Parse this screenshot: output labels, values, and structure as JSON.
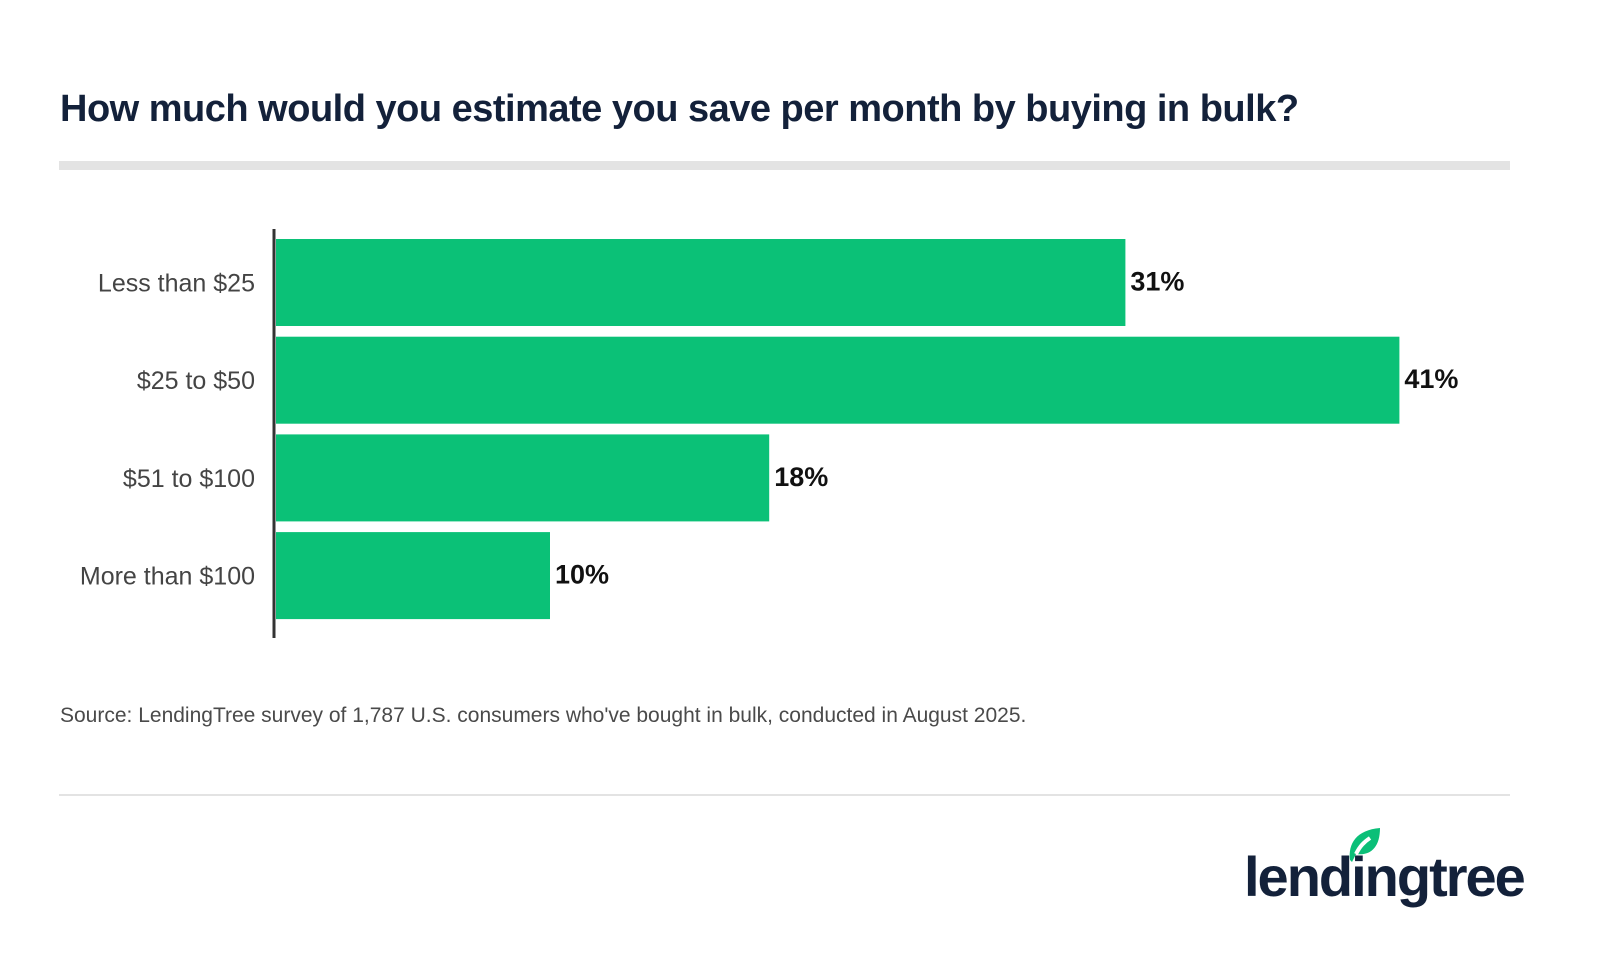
{
  "title": "How much would you estimate you save per month by buying in bulk?",
  "source": "Source: LendingTree survey of 1,787 U.S. consumers who've bought in bulk, conducted in August 2025.",
  "logo": {
    "text": "lendingtree",
    "icon": "leaf-icon",
    "color": "#0bbf78"
  },
  "chart_data": {
    "type": "bar",
    "orientation": "horizontal",
    "title": "How much would you estimate you save per month by buying in bulk?",
    "categories": [
      "Less than $25",
      "$25 to $50",
      "$51 to $100",
      "More than $100"
    ],
    "values": [
      31,
      41,
      18,
      10
    ],
    "labels": [
      "31%",
      "41%",
      "18%",
      "10%"
    ],
    "unit": "%",
    "bar_color": "#0bc177",
    "grid": false,
    "legend": "none"
  }
}
